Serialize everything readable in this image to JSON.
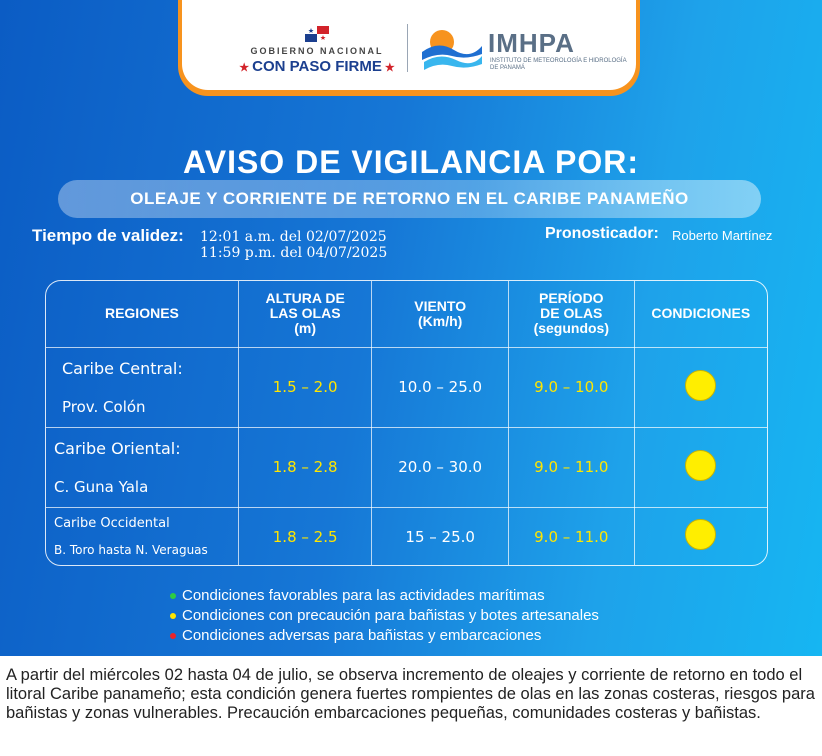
{
  "header": {
    "gov_line1": "GOBIERNO NACIONAL",
    "gov_line2": "CON PASO FIRME",
    "agency_name": "IMHPA",
    "agency_sub": "INSTITUTO DE METEOROLOGÍA E HIDROLOGÍA DE PANAMÁ"
  },
  "title": "AVISO DE VIGILANCIA POR:",
  "subtitle": "OLEAJE Y CORRIENTE DE RETORNO EN EL CARIBE PANAMEÑO",
  "validity": {
    "label": "Tiempo de validez:",
    "start": "12:01 a.m. del 02/07/2025",
    "end": "11:59 p.m. del 04/07/2025"
  },
  "forecaster": {
    "label": "Pronosticador:",
    "name": "Roberto Martínez"
  },
  "table": {
    "headers": {
      "regions": "REGIONES",
      "wave_height_1": "ALTURA DE",
      "wave_height_2": "LAS OLAS",
      "wave_height_3": "(m)",
      "wind_1": "VIENTO",
      "wind_2": "(Km/h)",
      "period_1": "PERÍODO",
      "period_2": "DE OLAS",
      "period_3": "(segundos)",
      "conditions": "CONDICIONES"
    },
    "rows": [
      {
        "region": "Caribe Central:",
        "sub": "Prov. Colón",
        "wave": "1.5 – 2.0",
        "wind": "10.0 – 25.0",
        "period": "9.0 – 10.0",
        "condition": "yellow"
      },
      {
        "region": "Caribe Oriental:",
        "sub": "C. Guna Yala",
        "wave": "1.8 – 2.8",
        "wind": "20.0 – 30.0",
        "period": "9.0 – 11.0",
        "condition": "yellow"
      },
      {
        "region": "Caribe Occidental",
        "sub": "B. Toro hasta N. Veraguas",
        "wave": "1.8 – 2.5",
        "wind": "15 – 25.0",
        "period": "9.0 – 11.0",
        "condition": "yellow"
      }
    ]
  },
  "legend": [
    {
      "text": "Condiciones favorables para las actividades marítimas",
      "color": "#2ecc40"
    },
    {
      "text": "Condiciones con precaución para bañistas y botes artesanales",
      "color": "#ffe600"
    },
    {
      "text": "Condiciones adversas para bañistas y embarcaciones",
      "color": "#e8242a"
    }
  ],
  "description": "A partir del miércoles 02 hasta 04 de julio, se observa incremento de oleajes y corriente de retorno en todo el litoral Caribe panameño; esta condición genera fuertes rompientes de olas en las zonas costeras, riesgos para bañistas y zonas vulnerables. Precaución embarcaciones pequeñas, comunidades costeras y bañistas."
}
